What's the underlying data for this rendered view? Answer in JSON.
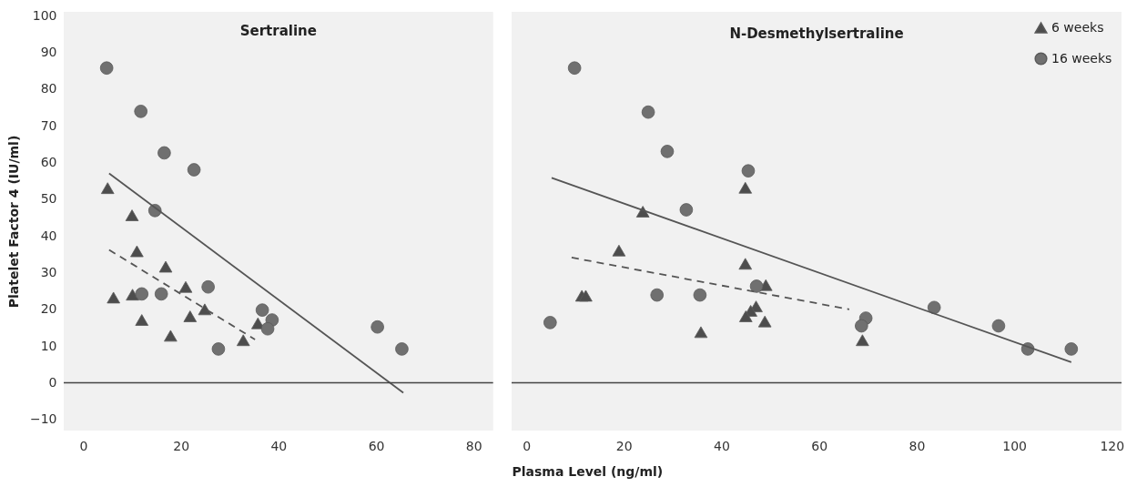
{
  "chart_data": [
    {
      "type": "scatter",
      "title": "Sertraline",
      "ylabel": "Platelet Factor 4 (IU/ml)",
      "xlim": [
        -4,
        84
      ],
      "xticks": [
        0,
        20,
        40,
        60,
        80
      ],
      "ylim": [
        -13,
        101
      ],
      "yticks": [
        -10,
        0,
        10,
        20,
        30,
        40,
        50,
        60,
        70,
        80,
        90,
        100
      ],
      "grid": false,
      "tick_labels": "xy",
      "ref_lines": [
        {
          "axis": "y",
          "value": 0,
          "color": "#444444"
        }
      ],
      "series": [
        {
          "color": "#4d4d4d",
          "marker": "triangle",
          "x": [
            5,
            10,
            11,
            16.9,
            6.2,
            10.1,
            12,
            21,
            21.9,
            24.9,
            17.9,
            32.8,
            35.8
          ],
          "values": [
            53,
            45.6,
            35.8,
            31.6,
            23.2,
            24,
            17.1,
            26.1,
            18.1,
            20,
            12.8,
            11.6,
            16.2
          ]
        },
        {
          "color": "#707070",
          "marker": "circle",
          "x": [
            4.8,
            11.8,
            16.6,
            22.7,
            14.7,
            12,
            16,
            25.6,
            36.7,
            38.7,
            37.8,
            27.7,
            60.3,
            65.3
          ],
          "values": [
            85.7,
            73.9,
            62.6,
            58,
            46.9,
            24.2,
            24.2,
            26.1,
            19.8,
            17.1,
            14.7,
            9.2,
            15.2,
            9.2
          ]
        },
        {
          "type": "line",
          "color": "#555555",
          "line_style": "dashed",
          "x": [
            5.3,
            35.2
          ],
          "values": [
            36.2,
            11.8
          ]
        },
        {
          "type": "line",
          "color": "#555555",
          "line_style": "solid",
          "x": [
            5.3,
            65.6
          ],
          "values": [
            57,
            -2.7
          ]
        }
      ]
    },
    {
      "type": "scatter",
      "title": "N-Desmethylsertraline",
      "xlabel": "Plasma Level (ng/ml)",
      "xlim": [
        -3,
        122
      ],
      "xticks": [
        0,
        20,
        40,
        60,
        80,
        100,
        120
      ],
      "ylim": [
        -13,
        101
      ],
      "grid": false,
      "legend": "top right",
      "tick_labels": "x",
      "ref_lines": [
        {
          "axis": "y",
          "value": 0,
          "color": "#444444"
        }
      ],
      "series": [
        {
          "name": "6 weeks",
          "color": "#4d4d4d",
          "marker": "triangle",
          "x": [
            44.9,
            23.9,
            19,
            44.9,
            11.4,
            12.2,
            49.1,
            47.1,
            46,
            45,
            48.9,
            35.8,
            68.9
          ],
          "values": [
            53.1,
            46.6,
            36,
            32.4,
            23.7,
            23.7,
            26.6,
            20.8,
            19.6,
            18.1,
            16.7,
            13.8,
            11.6
          ]
        },
        {
          "name": "16 weeks",
          "color": "#707070",
          "marker": "circle",
          "x": [
            9.9,
            25,
            28.9,
            45.5,
            32.8,
            26.8,
            35.6,
            4.9,
            47.2,
            69.6,
            68.7,
            83.6,
            96.8,
            102.8,
            111.7
          ],
          "values": [
            85.7,
            73.7,
            63,
            57.7,
            47.1,
            23.9,
            23.9,
            16.4,
            26.3,
            17.6,
            15.5,
            20.5,
            15.5,
            9.2,
            9.2
          ]
        },
        {
          "type": "line",
          "color": "#555555",
          "line_style": "dashed",
          "x": [
            9.3,
            66.2
          ],
          "values": [
            34.1,
            20
          ]
        },
        {
          "type": "line",
          "color": "#555555",
          "line_style": "solid",
          "x": [
            5.2,
            111.7
          ],
          "values": [
            55.8,
            5.6
          ]
        }
      ]
    }
  ]
}
